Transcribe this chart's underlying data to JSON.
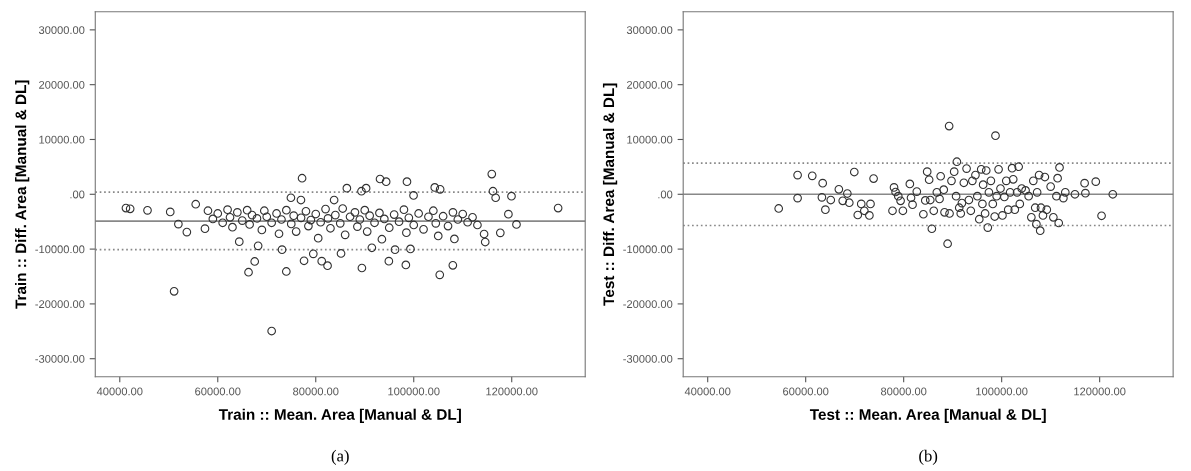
{
  "chart_data": [
    {
      "type": "scatter",
      "xlabel": "Train :: Mean. Area [Manual & DL]",
      "ylabel": "Train :: Diff. Area [Manual & DL]",
      "annotations": [
        "(a)"
      ],
      "marker": "circle",
      "grid": false,
      "legend": false,
      "xlim": [
        35000,
        135000
      ],
      "ylim": [
        -33300,
        33300
      ],
      "xticks": [
        {
          "value": 40000,
          "label": "40000.00"
        },
        {
          "value": 60000,
          "label": "60000.00"
        },
        {
          "value": 80000,
          "label": "80000.00"
        },
        {
          "value": 100000,
          "label": "100000.00"
        },
        {
          "value": 120000,
          "label": "120000.00"
        }
      ],
      "yticks": [
        {
          "value": -30000,
          "label": "-30000.00"
        },
        {
          "value": -20000,
          "label": "-20000.00"
        },
        {
          "value": -10000,
          "label": "-10000.00"
        },
        {
          "value": 0,
          "label": ".00"
        },
        {
          "value": 10000,
          "label": "10000.00"
        },
        {
          "value": 20000,
          "label": "20000.00"
        },
        {
          "value": 30000,
          "label": "30000.00"
        }
      ],
      "ref_lines": [
        {
          "axis": "y",
          "value": -4900,
          "label": null,
          "color": "#888888",
          "line_style": "solid"
        },
        {
          "axis": "y",
          "value": 380,
          "label": null,
          "color": "#888888",
          "line_style": "dotted"
        },
        {
          "axis": "y",
          "value": -10100,
          "label": null,
          "color": "#888888",
          "line_style": "dotted"
        }
      ],
      "series": [
        {
          "color": "#333333",
          "x": [
            41260,
            42120,
            45660,
            50300,
            51960,
            51090,
            53690,
            55500,
            57390,
            64390,
            66280,
            67540,
            71000,
            73990,
            74930,
            77210,
            76980,
            77610,
            79500,
            82410,
            83750,
            86350,
            89330,
            90280,
            89420,
            93120,
            94370,
            98620,
            99960,
            98390,
            94920,
            104290,
            105390,
            105310,
            107980,
            108300,
            115930,
            116170,
            116720,
            117670,
            119950,
            119320,
            120970,
            129470,
            114360,
            114590,
            96180,
            99330,
            91450,
            85160,
            81220,
            73120,
            68240,
            58000,
            59000,
            60000,
            61000,
            62000,
            62500,
            63000,
            64000,
            65000,
            66000,
            66500,
            67000,
            68000,
            69000,
            69500,
            70000,
            71000,
            72000,
            72500,
            73000,
            74000,
            75000,
            75500,
            76000,
            77000,
            78000,
            78500,
            79000,
            80000,
            80500,
            81000,
            82000,
            82500,
            83000,
            84000,
            85000,
            85500,
            86000,
            87000,
            88000,
            88500,
            89000,
            90000,
            90500,
            91000,
            92000,
            93000,
            93500,
            94000,
            95000,
            96000,
            97000,
            98000,
            98500,
            99000,
            100000,
            101000,
            102000,
            103000,
            104000,
            104500,
            105000,
            106000,
            107000,
            108000,
            109000,
            110000,
            111000,
            112000,
            113000
          ],
          "values": [
            -2510,
            -2650,
            -2930,
            -3210,
            -5440,
            -17700,
            -6900,
            -1810,
            -6270,
            -8640,
            -14220,
            -12260,
            -24950,
            -14080,
            -630,
            2930,
            -1050,
            -12130,
            -10870,
            -13030,
            -1050,
            1110,
            560,
            1110,
            -13450,
            2790,
            2300,
            2300,
            -210,
            -12890,
            -12200,
            1250,
            910,
            -14700,
            -12960,
            -8150,
            3690,
            560,
            -630,
            -7040,
            -350,
            -3620,
            -5500,
            -2510,
            -7250,
            -8710,
            -10100,
            -9970,
            -9760,
            -10800,
            -12200,
            -10100,
            -9410,
            -3000,
            -4500,
            -3500,
            -5200,
            -2800,
            -4200,
            -6000,
            -3300,
            -4800,
            -2900,
            -5500,
            -3800,
            -4400,
            -6500,
            -3000,
            -4100,
            -5200,
            -3500,
            -7200,
            -4600,
            -2900,
            -5400,
            -3900,
            -6800,
            -4300,
            -3100,
            -5800,
            -4700,
            -3600,
            -8000,
            -5100,
            -2700,
            -4400,
            -6200,
            -3800,
            -5300,
            -2600,
            -7400,
            -4100,
            -3300,
            -5900,
            -4600,
            -2900,
            -6800,
            -3900,
            -5200,
            -3400,
            -8200,
            -4500,
            -6100,
            -3700,
            -5000,
            -2800,
            -7000,
            -4300,
            -5600,
            -3500,
            -6400,
            -4100,
            -3000,
            -5300,
            -7600,
            -4000,
            -5800,
            -3300,
            -4600,
            -3600,
            -5100,
            -4200,
            -5600
          ]
        }
      ]
    },
    {
      "type": "scatter",
      "xlabel": "Test :: Mean. Area [Manual & DL]",
      "ylabel": "Test :: Diff. Area [Manual & DL]",
      "annotations": [
        "(b)"
      ],
      "marker": "circle",
      "grid": false,
      "legend": false,
      "xlim": [
        35000,
        135000
      ],
      "ylim": [
        -33300,
        33300
      ],
      "xticks": [
        {
          "value": 40000,
          "label": "40000.00"
        },
        {
          "value": 60000,
          "label": "60000.00"
        },
        {
          "value": 80000,
          "label": "80000.00"
        },
        {
          "value": 100000,
          "label": "100000.00"
        },
        {
          "value": 120000,
          "label": "120000.00"
        }
      ],
      "yticks": [
        {
          "value": -30000,
          "label": "-30000.00"
        },
        {
          "value": -20000,
          "label": "-20000.00"
        },
        {
          "value": -10000,
          "label": "-10000.00"
        },
        {
          "value": 0,
          "label": ".00"
        },
        {
          "value": 10000,
          "label": "10000.00"
        },
        {
          "value": 20000,
          "label": "20000.00"
        },
        {
          "value": 30000,
          "label": "30000.00"
        }
      ],
      "ref_lines": [
        {
          "axis": "y",
          "value": 0,
          "label": null,
          "color": "#888888",
          "line_style": "solid"
        },
        {
          "axis": "y",
          "value": 5700,
          "label": null,
          "color": "#888888",
          "line_style": "dotted"
        },
        {
          "axis": "y",
          "value": -5700,
          "label": null,
          "color": "#888888",
          "line_style": "dotted"
        }
      ],
      "series": [
        {
          "color": "#333333",
          "x": [
            54490,
            58350,
            58350,
            61340,
            63470,
            63310,
            64020,
            65120,
            66770,
            67560,
            68500,
            68900,
            69920,
            70630,
            71340,
            71970,
            73000,
            73230,
            73860,
            77720,
            78030,
            78350,
            78900,
            79370,
            79840,
            81260,
            81500,
            81810,
            82680,
            84020,
            84410,
            84800,
            85200,
            85430,
            85750,
            86140,
            86770,
            87320,
            87550,
            88180,
            88340,
            88970,
            89280,
            89360,
            89760,
            90310,
            90700,
            90860,
            91340,
            91650,
            91890,
            92280,
            92840,
            93310,
            93700,
            94020,
            94650,
            95040,
            95430,
            95830,
            96070,
            96220,
            96620,
            96850,
            97170,
            97400,
            97800,
            98190,
            98580,
            98740,
            98980,
            99370,
            99760,
            100160,
            100550,
            100940,
            101340,
            101730,
            102130,
            102360,
            102680,
            103150,
            103470,
            103700,
            104090,
            104880,
            105510,
            106060,
            106460,
            106850,
            107090,
            107240,
            107640,
            107870,
            108030,
            108430,
            108820,
            109210,
            110000,
            110550,
            111180,
            111420,
            111650,
            111810,
            112600,
            112990,
            114960,
            116930,
            117090,
            119210,
            120390,
            122680
          ],
          "values": [
            -2590,
            3500,
            -700,
            3360,
            2030,
            -560,
            -2800,
            -1050,
            910,
            -1190,
            140,
            -1540,
            4060,
            -3780,
            -1750,
            -3010,
            -3850,
            -1750,
            2870,
            -3010,
            1260,
            420,
            -350,
            -1190,
            -3010,
            1890,
            -630,
            -1890,
            490,
            -3640,
            -1120,
            4130,
            2660,
            -1050,
            -6290,
            -3010,
            350,
            -840,
            3290,
            840,
            -3290,
            -9020,
            12450,
            -3500,
            2450,
            4130,
            -350,
            5940,
            -2450,
            -3500,
            -1610,
            2100,
            4690,
            -1050,
            -3010,
            2450,
            3500,
            -350,
            -4550,
            4550,
            -1750,
            1750,
            -3500,
            4340,
            -6080,
            350,
            2450,
            -1750,
            -4060,
            10700,
            -350,
            4550,
            1050,
            -3850,
            -490,
            2450,
            -2800,
            350,
            4760,
            2730,
            -2800,
            350,
            5030,
            -1750,
            1050,
            700,
            -350,
            -4200,
            2450,
            -2450,
            -5450,
            350,
            3500,
            -6640,
            -2450,
            -3850,
            3150,
            -2800,
            1400,
            -4200,
            -350,
            2940,
            -5240,
            4900,
            -700,
            350,
            0,
            2030,
            210,
            2310,
            -3920,
            0
          ]
        }
      ]
    }
  ]
}
